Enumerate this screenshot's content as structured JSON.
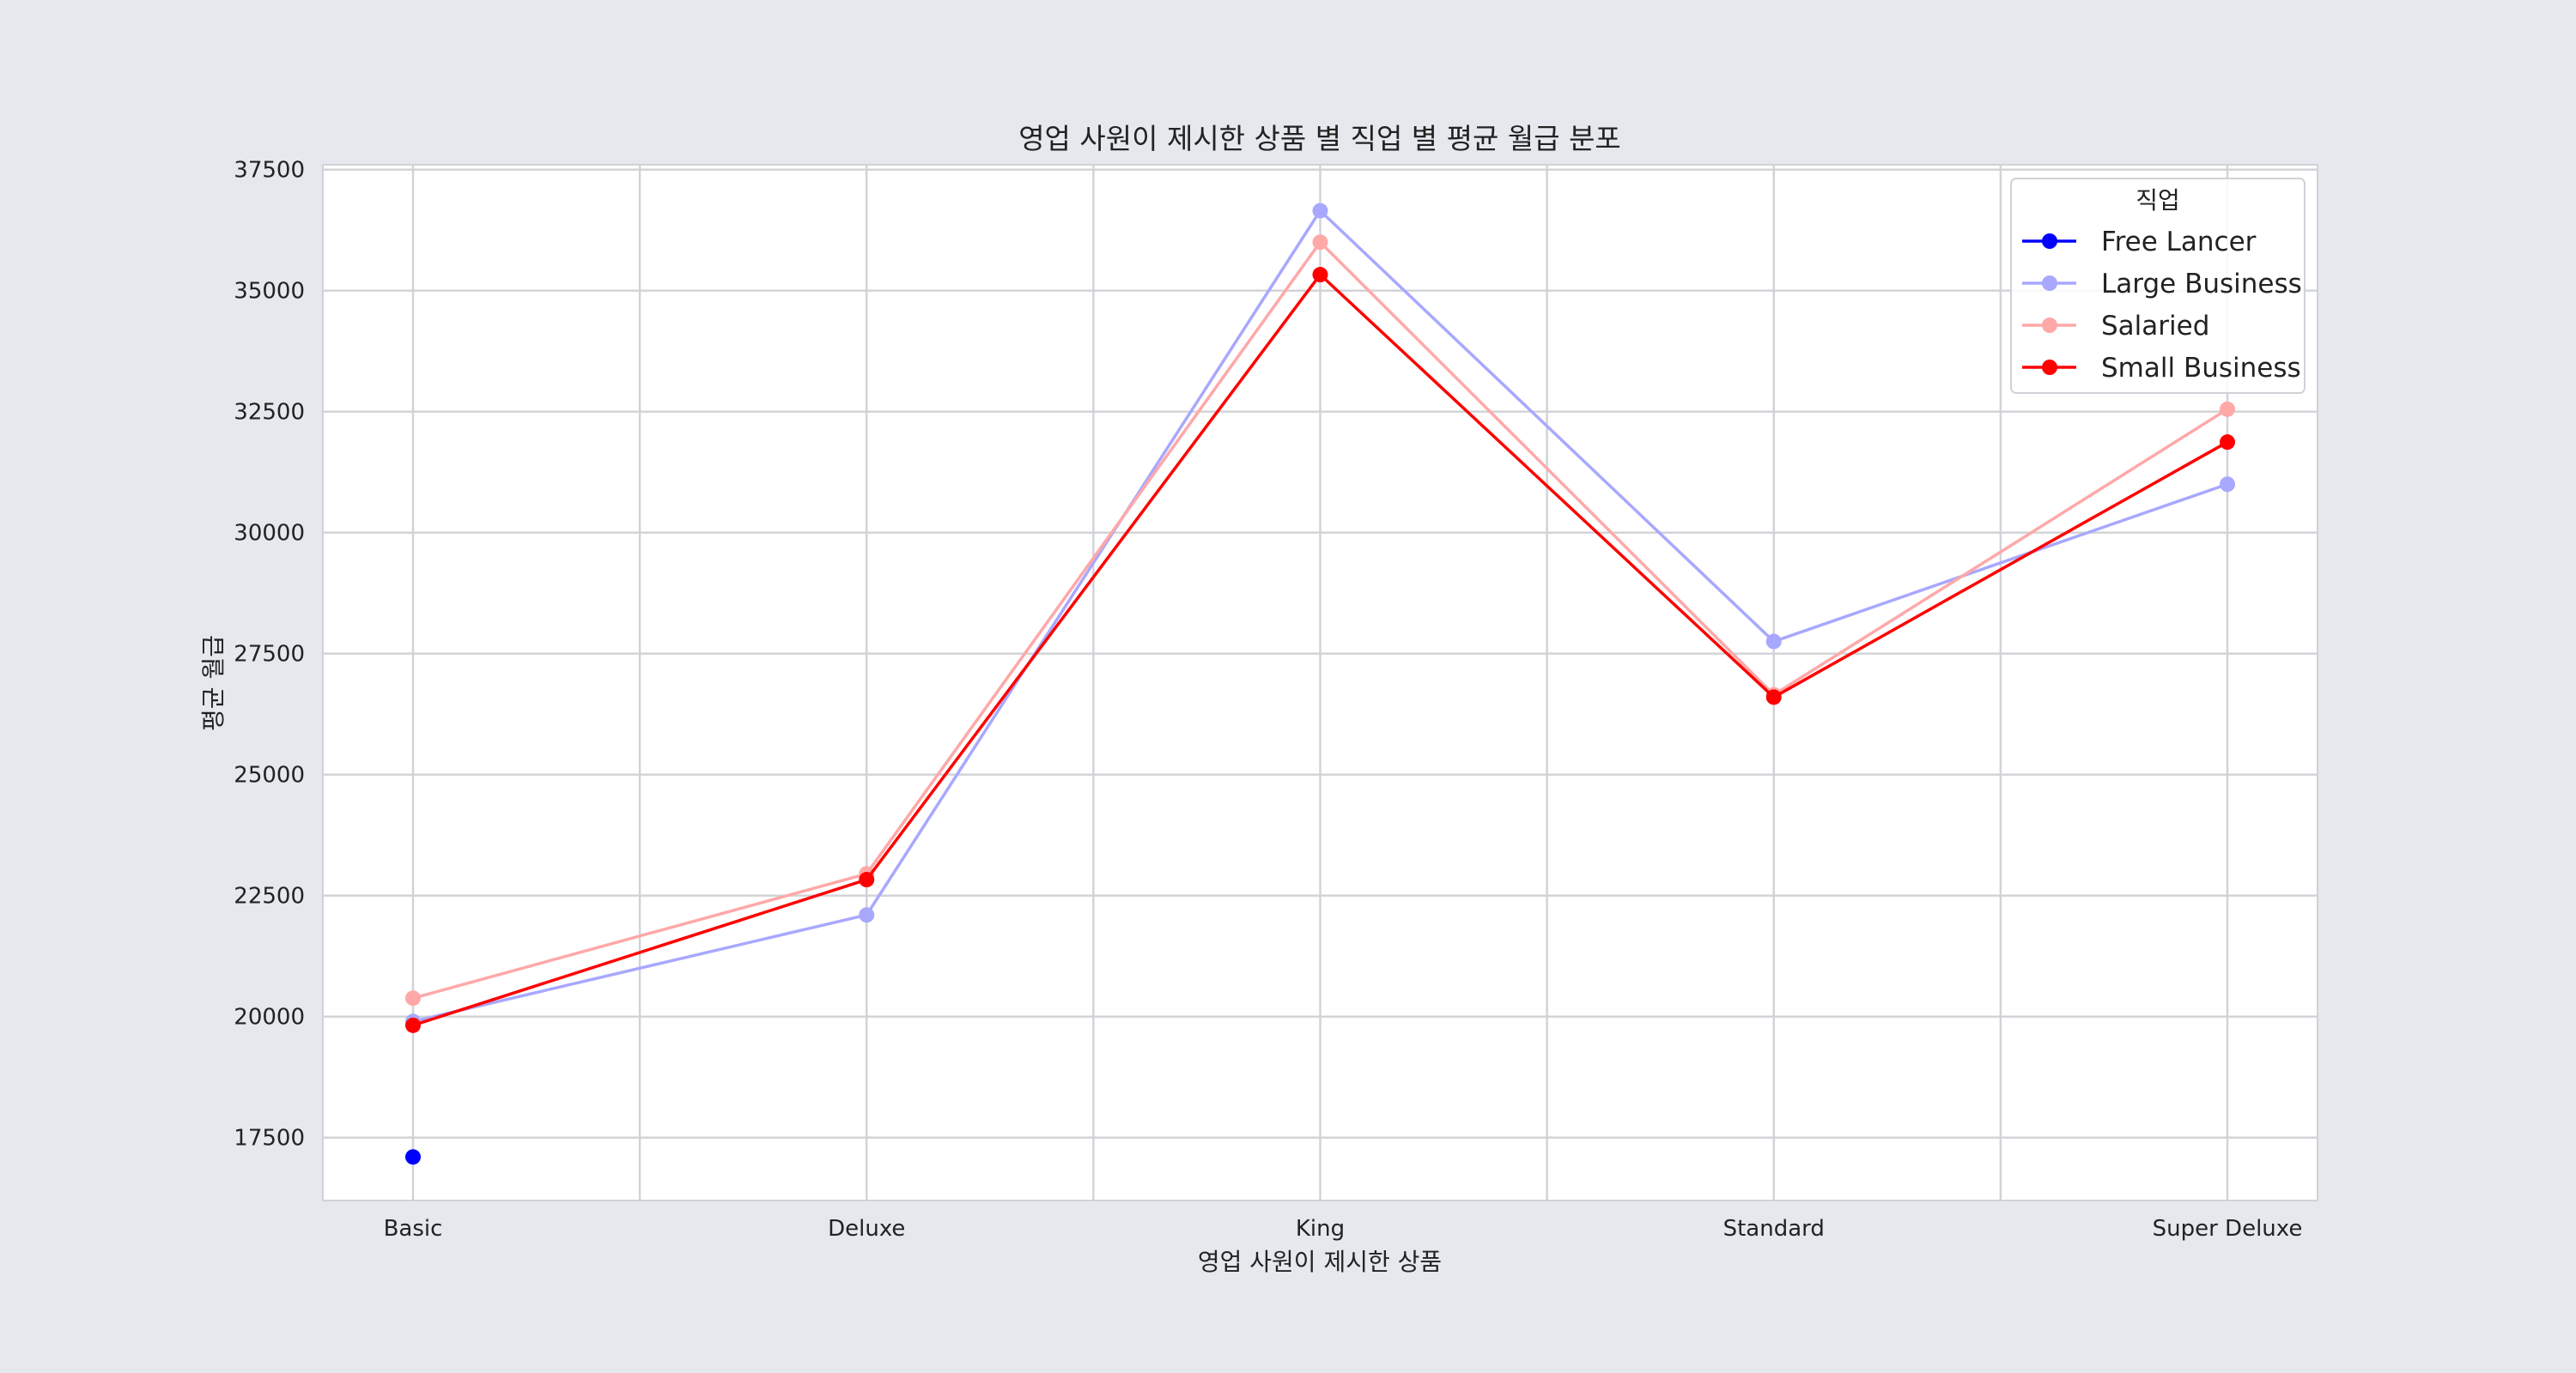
{
  "chart_data": {
    "type": "line",
    "title": "영업 사원이 제시한 상품 별 직업 별 평균 월급 분포",
    "xlabel": "영업 사원이 제시한 상품",
    "ylabel": "평균 월급",
    "categories": [
      "Basic",
      "Deluxe",
      "King",
      "Standard",
      "Super Deluxe"
    ],
    "ylim": [
      16200,
      37600
    ],
    "yticks": [
      17500,
      20000,
      22500,
      25000,
      27500,
      30000,
      32500,
      35000,
      37500
    ],
    "grid": true,
    "legend": {
      "title": "직업",
      "placement": "top-right"
    },
    "series": [
      {
        "name": "Free Lancer",
        "color": "#0000ff",
        "values": [
          17100,
          null,
          null,
          null,
          null
        ]
      },
      {
        "name": "Large Business",
        "color": "#a8a8ff",
        "values": [
          19900,
          22100,
          36650,
          27750,
          31000
        ]
      },
      {
        "name": "Salaried",
        "color": "#ffa8a8",
        "values": [
          20380,
          22950,
          36000,
          26650,
          32550
        ]
      },
      {
        "name": "Small Business",
        "color": "#ff0000",
        "values": [
          19820,
          22830,
          35330,
          26600,
          31870
        ]
      }
    ]
  }
}
